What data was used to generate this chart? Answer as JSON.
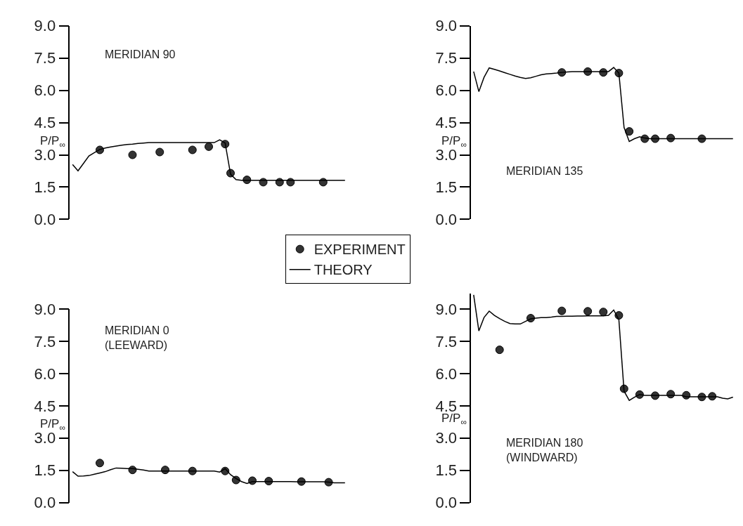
{
  "chart_data": [
    {
      "type": "line",
      "title": "MERIDIAN 90",
      "ylabel": "P/P$_{∞}$",
      "legend": "bottom right",
      "tick_labels": "y",
      "ylim": [
        0,
        9
      ],
      "yticks": [
        {
          "value": 0,
          "label": "0.0"
        },
        {
          "value": 1.5,
          "label": "1.5"
        },
        {
          "value": 3,
          "label": "3.0"
        },
        {
          "value": 4.5,
          "label": "4.5"
        },
        {
          "value": 6,
          "label": "6.0"
        },
        {
          "value": 7.5,
          "label": "7.5"
        },
        {
          "value": 9,
          "label": "9.0"
        }
      ],
      "categories": [
        null,
        null,
        null,
        null,
        null,
        null,
        null,
        null,
        null,
        null,
        null,
        null,
        null,
        null,
        null,
        null,
        null,
        null,
        null,
        null,
        null,
        null,
        null,
        null,
        null,
        null,
        null,
        null,
        null,
        null,
        null,
        null,
        null,
        null,
        null,
        null,
        null,
        null,
        null,
        null,
        null,
        null,
        null,
        null,
        null,
        null,
        null,
        null,
        null,
        null,
        null
      ],
      "series": [
        {
          "name": "EXPERIMENT",
          "type": "scatter",
          "marker": "circle",
          "color": "#333333",
          "values": [
            null,
            null,
            null,
            null,
            null,
            3.23,
            null,
            null,
            null,
            null,
            null,
            3.0,
            null,
            null,
            null,
            null,
            3.13,
            null,
            null,
            null,
            null,
            null,
            3.23,
            null,
            null,
            3.38,
            null,
            null,
            3.5,
            2.15,
            null,
            null,
            1.84,
            null,
            null,
            1.73,
            null,
            null,
            1.73,
            null,
            1.73,
            null,
            null,
            null,
            null,
            null,
            1.73,
            null,
            null,
            null,
            null
          ]
        },
        {
          "name": "THEORY",
          "line_style": "solid",
          "color": "#000000",
          "values": [
            2.55,
            2.26,
            2.6,
            2.95,
            3.1,
            3.25,
            3.32,
            3.37,
            3.41,
            3.45,
            3.48,
            3.5,
            3.53,
            3.55,
            3.57,
            3.57,
            3.57,
            3.57,
            3.57,
            3.57,
            3.57,
            3.57,
            3.57,
            3.57,
            3.57,
            3.57,
            3.57,
            3.7,
            3.55,
            2.1,
            1.85,
            1.82,
            1.82,
            1.82,
            1.82,
            1.82,
            1.82,
            1.82,
            1.82,
            1.82,
            1.82,
            1.82,
            1.82,
            1.82,
            1.82,
            1.82,
            1.82,
            1.82,
            1.82,
            1.82,
            1.82
          ]
        }
      ]
    },
    {
      "type": "line",
      "title": "MERIDIAN 135",
      "ylabel": "P/P$_{∞}$",
      "tick_labels": "y",
      "ylim": [
        0,
        9
      ],
      "yticks": [
        {
          "value": 0,
          "label": "0.0"
        },
        {
          "value": 1.5,
          "label": "1.5"
        },
        {
          "value": 3,
          "label": "3.0"
        },
        {
          "value": 4.5,
          "label": "4.5"
        },
        {
          "value": 6,
          "label": "6.0"
        },
        {
          "value": 7.5,
          "label": "7.5"
        },
        {
          "value": 9,
          "label": "9.0"
        }
      ],
      "categories": [
        null,
        null,
        null,
        null,
        null,
        null,
        null,
        null,
        null,
        null,
        null,
        null,
        null,
        null,
        null,
        null,
        null,
        null,
        null,
        null,
        null,
        null,
        null,
        null,
        null,
        null,
        null,
        null,
        null,
        null,
        null,
        null,
        null,
        null,
        null,
        null,
        null,
        null,
        null,
        null,
        null,
        null,
        null,
        null,
        null,
        null,
        null,
        null,
        null,
        null,
        null
      ],
      "series": [
        {
          "type": "scatter",
          "marker": "circle",
          "color": "#333333",
          "values": [
            null,
            null,
            null,
            null,
            null,
            null,
            null,
            null,
            null,
            null,
            null,
            null,
            null,
            null,
            null,
            null,
            null,
            6.83,
            null,
            null,
            null,
            null,
            6.87,
            null,
            null,
            6.83,
            null,
            null,
            6.8,
            null,
            4.09,
            null,
            null,
            3.75,
            null,
            3.75,
            null,
            null,
            3.78,
            null,
            null,
            null,
            null,
            null,
            3.75,
            null,
            null,
            null,
            null,
            null,
            null
          ]
        },
        {
          "line_style": "solid",
          "color": "#000000",
          "values": [
            6.87,
            5.94,
            6.6,
            7.04,
            6.97,
            6.9,
            6.82,
            6.74,
            6.66,
            6.6,
            6.55,
            6.58,
            6.65,
            6.72,
            6.76,
            6.78,
            6.8,
            6.83,
            6.85,
            6.87,
            6.87,
            6.87,
            6.87,
            6.87,
            6.87,
            6.87,
            6.87,
            7.06,
            6.8,
            4.27,
            3.62,
            3.75,
            3.84,
            3.78,
            3.75,
            3.75,
            3.75,
            3.75,
            3.75,
            3.75,
            3.75,
            3.75,
            3.75,
            3.75,
            3.75,
            3.75,
            3.75,
            3.75,
            3.75,
            3.75,
            3.75
          ]
        }
      ]
    },
    {
      "type": "line",
      "title": "MERIDIAN 0\n(LEEWARD)",
      "ylabel": "P/P$_{∞}$",
      "tick_labels": "y",
      "ylim": [
        0,
        9
      ],
      "yticks": [
        {
          "value": 0,
          "label": "0.0"
        },
        {
          "value": 1.5,
          "label": "1.5"
        },
        {
          "value": 3,
          "label": "3.0"
        },
        {
          "value": 4.5,
          "label": "4.5"
        },
        {
          "value": 6,
          "label": "6.0"
        },
        {
          "value": 7.5,
          "label": "7.5"
        },
        {
          "value": 9,
          "label": "9.0"
        }
      ],
      "categories": [
        null,
        null,
        null,
        null,
        null,
        null,
        null,
        null,
        null,
        null,
        null,
        null,
        null,
        null,
        null,
        null,
        null,
        null,
        null,
        null,
        null,
        null,
        null,
        null,
        null,
        null,
        null,
        null,
        null,
        null,
        null,
        null,
        null,
        null,
        null,
        null,
        null,
        null,
        null,
        null,
        null,
        null,
        null,
        null,
        null,
        null,
        null,
        null,
        null,
        null,
        null
      ],
      "series": [
        {
          "type": "scatter",
          "marker": "circle",
          "color": "#333333",
          "values": [
            null,
            null,
            null,
            null,
            null,
            1.84,
            null,
            null,
            null,
            null,
            null,
            1.52,
            null,
            null,
            null,
            null,
            null,
            1.52,
            null,
            null,
            null,
            null,
            1.47,
            null,
            null,
            null,
            null,
            null,
            1.47,
            null,
            1.05,
            null,
            null,
            1.02,
            null,
            null,
            1.0,
            null,
            null,
            null,
            null,
            null,
            0.98,
            null,
            null,
            null,
            null,
            0.95,
            null,
            null,
            null
          ]
        },
        {
          "line_style": "solid",
          "color": "#000000",
          "values": [
            1.44,
            1.23,
            1.24,
            1.26,
            1.32,
            1.38,
            1.44,
            1.53,
            1.61,
            1.6,
            1.58,
            1.58,
            1.55,
            1.52,
            1.47,
            1.47,
            1.47,
            1.47,
            1.47,
            1.47,
            1.47,
            1.47,
            1.47,
            1.47,
            1.47,
            1.47,
            1.47,
            1.42,
            1.58,
            1.3,
            1.12,
            0.98,
            0.89,
            0.98,
            0.98,
            0.98,
            0.98,
            0.98,
            0.98,
            0.98,
            0.98,
            0.97,
            0.97,
            0.97,
            0.97,
            0.97,
            0.97,
            0.95,
            0.92,
            0.92,
            0.92
          ]
        }
      ]
    },
    {
      "type": "line",
      "title": "MERIDIAN 180\n(WINDWARD)",
      "ylabel": "P/P$_{∞}$",
      "tick_labels": "y",
      "ylim": [
        0,
        9.7
      ],
      "yticks": [
        {
          "value": 0,
          "label": "0.0"
        },
        {
          "value": 1.5,
          "label": "1.5"
        },
        {
          "value": 3,
          "label": "3.0"
        },
        {
          "value": 4.5,
          "label": "4.5"
        },
        {
          "value": 6,
          "label": "6.0"
        },
        {
          "value": 7.5,
          "label": "7.5"
        },
        {
          "value": 9,
          "label": "9.0"
        }
      ],
      "categories": [
        null,
        null,
        null,
        null,
        null,
        null,
        null,
        null,
        null,
        null,
        null,
        null,
        null,
        null,
        null,
        null,
        null,
        null,
        null,
        null,
        null,
        null,
        null,
        null,
        null,
        null,
        null,
        null,
        null,
        null,
        null,
        null,
        null,
        null,
        null,
        null,
        null,
        null,
        null,
        null,
        null,
        null,
        null,
        null,
        null,
        null,
        null,
        null,
        null,
        null,
        null
      ],
      "series": [
        {
          "type": "scatter",
          "marker": "circle",
          "color": "#333333",
          "values": [
            null,
            null,
            null,
            null,
            null,
            7.1,
            null,
            null,
            null,
            null,
            null,
            8.57,
            null,
            null,
            null,
            null,
            null,
            8.91,
            null,
            null,
            null,
            null,
            8.89,
            null,
            null,
            8.86,
            null,
            null,
            8.7,
            5.29,
            null,
            null,
            5.02,
            null,
            null,
            4.97,
            null,
            null,
            5.04,
            null,
            null,
            4.99,
            null,
            null,
            4.91,
            null,
            4.94,
            null,
            null,
            null,
            null
          ]
        },
        {
          "line_style": "solid",
          "color": "#000000",
          "values": [
            9.65,
            7.98,
            8.6,
            8.9,
            8.7,
            8.55,
            8.42,
            8.32,
            8.3,
            8.3,
            8.42,
            8.54,
            8.57,
            8.6,
            8.6,
            8.62,
            8.65,
            8.65,
            8.66,
            8.66,
            8.67,
            8.67,
            8.68,
            8.68,
            8.68,
            8.68,
            8.7,
            8.95,
            8.5,
            5.18,
            4.75,
            4.9,
            5.02,
            4.98,
            4.98,
            4.98,
            4.98,
            4.98,
            4.98,
            4.98,
            4.98,
            4.92,
            4.92,
            4.92,
            4.92,
            4.92,
            4.92,
            4.92,
            4.85,
            4.82,
            4.9
          ]
        }
      ]
    }
  ]
}
